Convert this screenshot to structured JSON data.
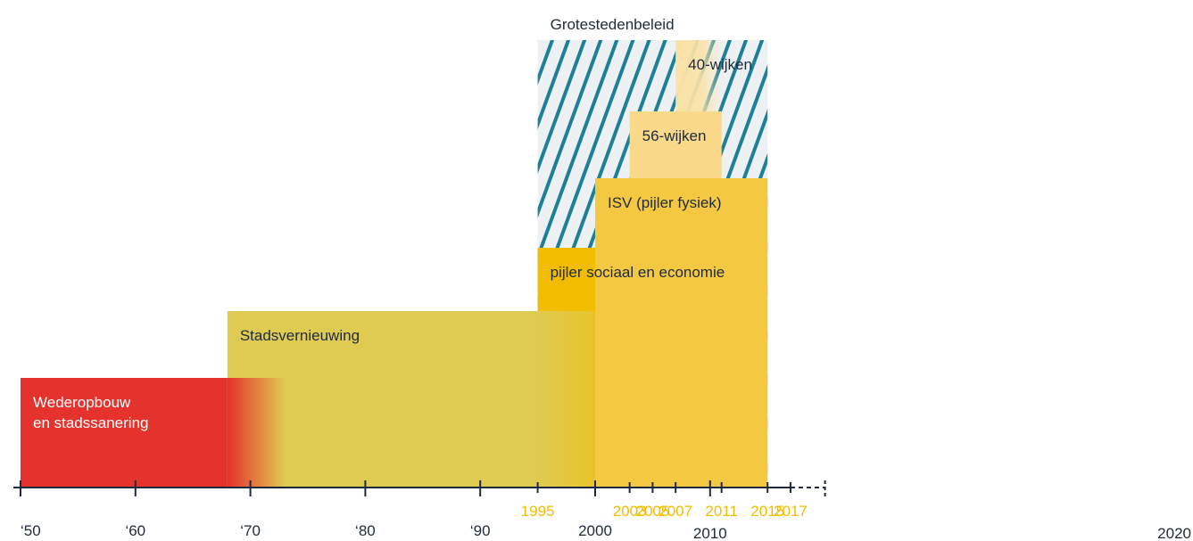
{
  "title": "Grotestedenbeleid",
  "colors": {
    "red": "#e5322c",
    "olive": "#dfca52",
    "gold": "#f2bd00",
    "amber": "#f5c842",
    "light": "#fad98a",
    "pale": "#fbe2a6",
    "hatch": "#1d7f98",
    "hatch_bg": "#eef1f3",
    "axis": "#1e2a3c",
    "year_accent": "#f2bd00",
    "text_dark": "#1e2a3c",
    "text_light": "#ffffff"
  },
  "periods": [
    {
      "id": "wederopbouw",
      "label_lines": [
        "Wederopbouw",
        "en stadssanering"
      ],
      "start": 1950,
      "end": 1973,
      "color": "red",
      "text": "light"
    },
    {
      "id": "stadsvernieuwing",
      "label_lines": [
        "Stadsvernieuwing"
      ],
      "start": 1968,
      "end": 2005,
      "color": "olive",
      "text": "dark"
    },
    {
      "id": "pijler-sociaal",
      "label_lines": [
        "pijler sociaal en economie"
      ],
      "start": 1995,
      "end": 2011,
      "color": "gold",
      "text": "dark"
    },
    {
      "id": "isv",
      "label_lines": [
        "ISV (pijler fysiek)"
      ],
      "start": 2000,
      "end": 2015,
      "color": "amber",
      "text": "dark"
    },
    {
      "id": "56-wijken",
      "label_lines": [
        "56-wijken"
      ],
      "start": 2003,
      "end": 2011,
      "color": "light",
      "text": "dark"
    },
    {
      "id": "40-wijken",
      "label_lines": [
        "40-wijken"
      ],
      "start": 2007,
      "end": 2011,
      "color": "pale",
      "text": "dark"
    }
  ],
  "grotestedenbeleid": {
    "start": 1995,
    "end": 2015
  },
  "axis": {
    "start": 1950,
    "end": 2017,
    "dashed_end": 2020,
    "major_ticks": [
      {
        "year": 1950,
        "label": "‘50"
      },
      {
        "year": 1960,
        "label": "‘60"
      },
      {
        "year": 1970,
        "label": "‘70"
      },
      {
        "year": 1980,
        "label": "‘80"
      },
      {
        "year": 1990,
        "label": "‘90"
      },
      {
        "year": 2000,
        "label": "2000"
      },
      {
        "year": 2010,
        "label": "2010"
      },
      {
        "year": 2020,
        "label": "2020"
      }
    ],
    "accent_ticks": [
      {
        "year": 1995,
        "label": "1995"
      },
      {
        "year": 2003,
        "label": "2003"
      },
      {
        "year": 2005,
        "label": "2005"
      },
      {
        "year": 2007,
        "label": "2007"
      },
      {
        "year": 2011,
        "label": "2011"
      },
      {
        "year": 2015,
        "label": "2015"
      },
      {
        "year": 2017,
        "label": "2017"
      }
    ]
  }
}
